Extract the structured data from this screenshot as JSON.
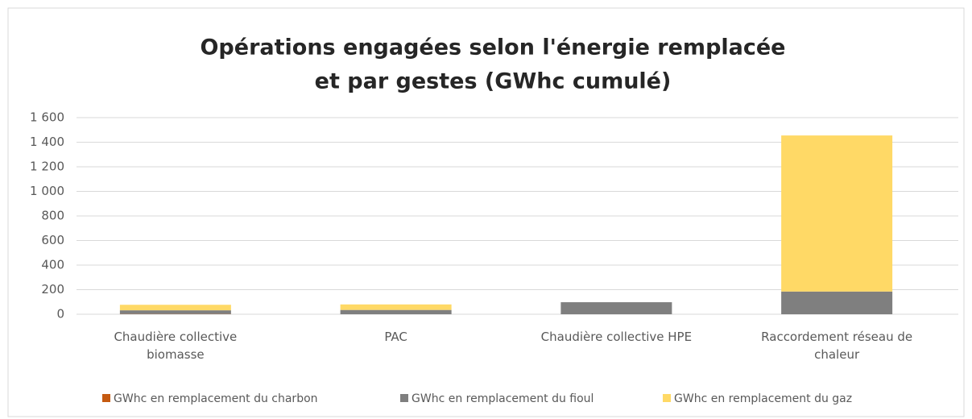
{
  "chart_data": {
    "type": "stacked_bar",
    "title": [
      "Opérations engagées selon l'énergie remplacée",
      "et par gestes (GWhc cumulé)"
    ],
    "categories": [
      "Chaudière collective biomasse",
      "PAC",
      "Chaudière collective HPE",
      "Raccordement réseau de chaleur"
    ],
    "series": [
      {
        "name": "GWhc en remplacement du charbon",
        "color": "#c55a11",
        "values": [
          2,
          0,
          0,
          0
        ]
      },
      {
        "name": "GWhc en remplacement du fioul",
        "color": "#7f7f7f",
        "values": [
          30,
          35,
          98,
          185
        ]
      },
      {
        "name": "GWhc en remplacement du gaz",
        "color": "#ffd966",
        "values": [
          45,
          45,
          0,
          1270
        ]
      }
    ],
    "ylim": [
      0,
      1600
    ],
    "yticks": [
      0,
      200,
      400,
      600,
      800,
      {
        "value": 1000,
        "label": "1 000"
      },
      {
        "value": 1200,
        "label": "1 200"
      },
      {
        "value": 1400,
        "label": "1 400"
      },
      {
        "value": 1600,
        "label": "1 600"
      }
    ],
    "grid": true,
    "legend": "bottom"
  }
}
